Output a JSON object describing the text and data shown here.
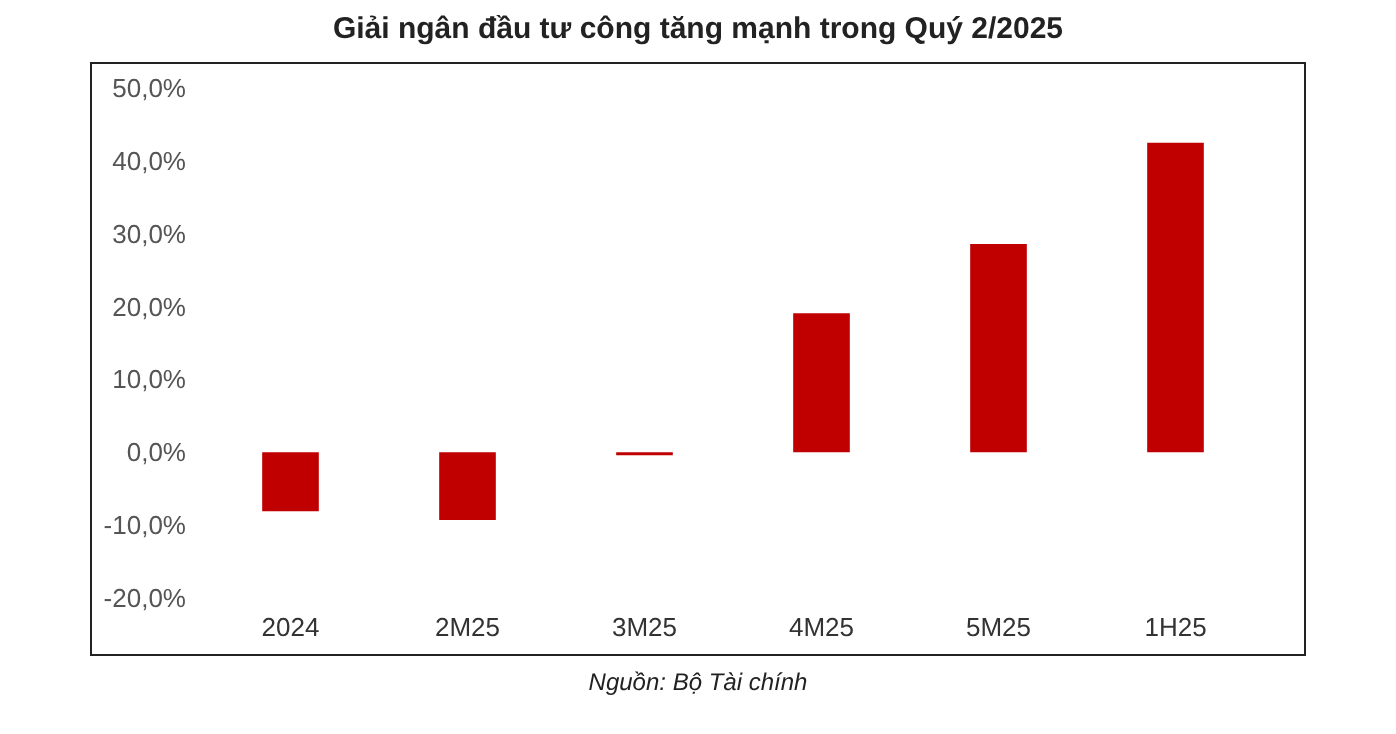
{
  "chart_data": {
    "type": "bar",
    "title": "Giải ngân đầu tư công tăng mạnh trong Quý 2/2025",
    "categories": [
      "2024",
      "2M25",
      "3M25",
      "4M25",
      "5M25",
      "1H25"
    ],
    "values": [
      -8.1,
      -9.3,
      -0.4,
      19.1,
      28.6,
      42.5
    ],
    "color": "#c00000",
    "ylim": [
      -20,
      50
    ],
    "yticks": [
      {
        "value": -20,
        "label": "-20,0%"
      },
      {
        "value": -10,
        "label": "-10,0%"
      },
      {
        "value": 0,
        "label": "0,0%"
      },
      {
        "value": 10,
        "label": "10,0%"
      },
      {
        "value": 20,
        "label": "20,0%"
      },
      {
        "value": 30,
        "label": "30,0%"
      },
      {
        "value": 40,
        "label": "40,0%"
      },
      {
        "value": 50,
        "label": "50,0%"
      }
    ],
    "grid": false,
    "annotations": [
      "Nguồn: Bộ Tài chính"
    ]
  }
}
